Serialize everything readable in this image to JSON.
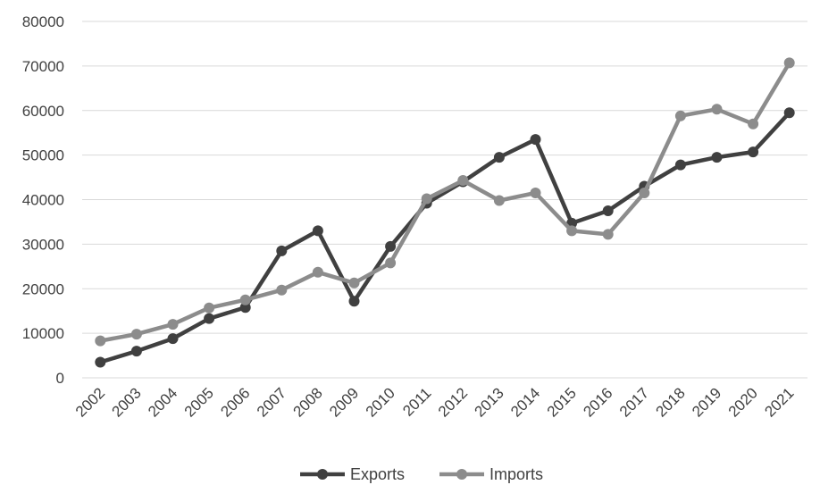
{
  "chart_data": {
    "type": "line",
    "title": "",
    "xlabel": "",
    "ylabel": "",
    "categories": [
      "2002",
      "2003",
      "2004",
      "2005",
      "2006",
      "2007",
      "2008",
      "2009",
      "2010",
      "2011",
      "2012",
      "2013",
      "2014",
      "2015",
      "2016",
      "2017",
      "2018",
      "2019",
      "2020",
      "2021"
    ],
    "ylim": [
      0,
      80000
    ],
    "yticks": [
      0,
      10000,
      20000,
      30000,
      40000,
      50000,
      60000,
      70000,
      80000
    ],
    "grid": true,
    "legend_position": "bottom",
    "series": [
      {
        "name": "Exports",
        "color": "#404040",
        "values": [
          3500,
          6000,
          8800,
          13300,
          15800,
          28500,
          33000,
          17200,
          29500,
          39200,
          44000,
          49500,
          53500,
          34700,
          37500,
          43000,
          47800,
          49500,
          50700,
          59500
        ]
      },
      {
        "name": "Imports",
        "color": "#8c8c8c",
        "values": [
          8300,
          9800,
          12000,
          15700,
          17500,
          19700,
          23700,
          21300,
          25800,
          40200,
          44300,
          39800,
          41500,
          33000,
          32200,
          41500,
          58800,
          60300,
          57000,
          70700
        ]
      }
    ]
  }
}
